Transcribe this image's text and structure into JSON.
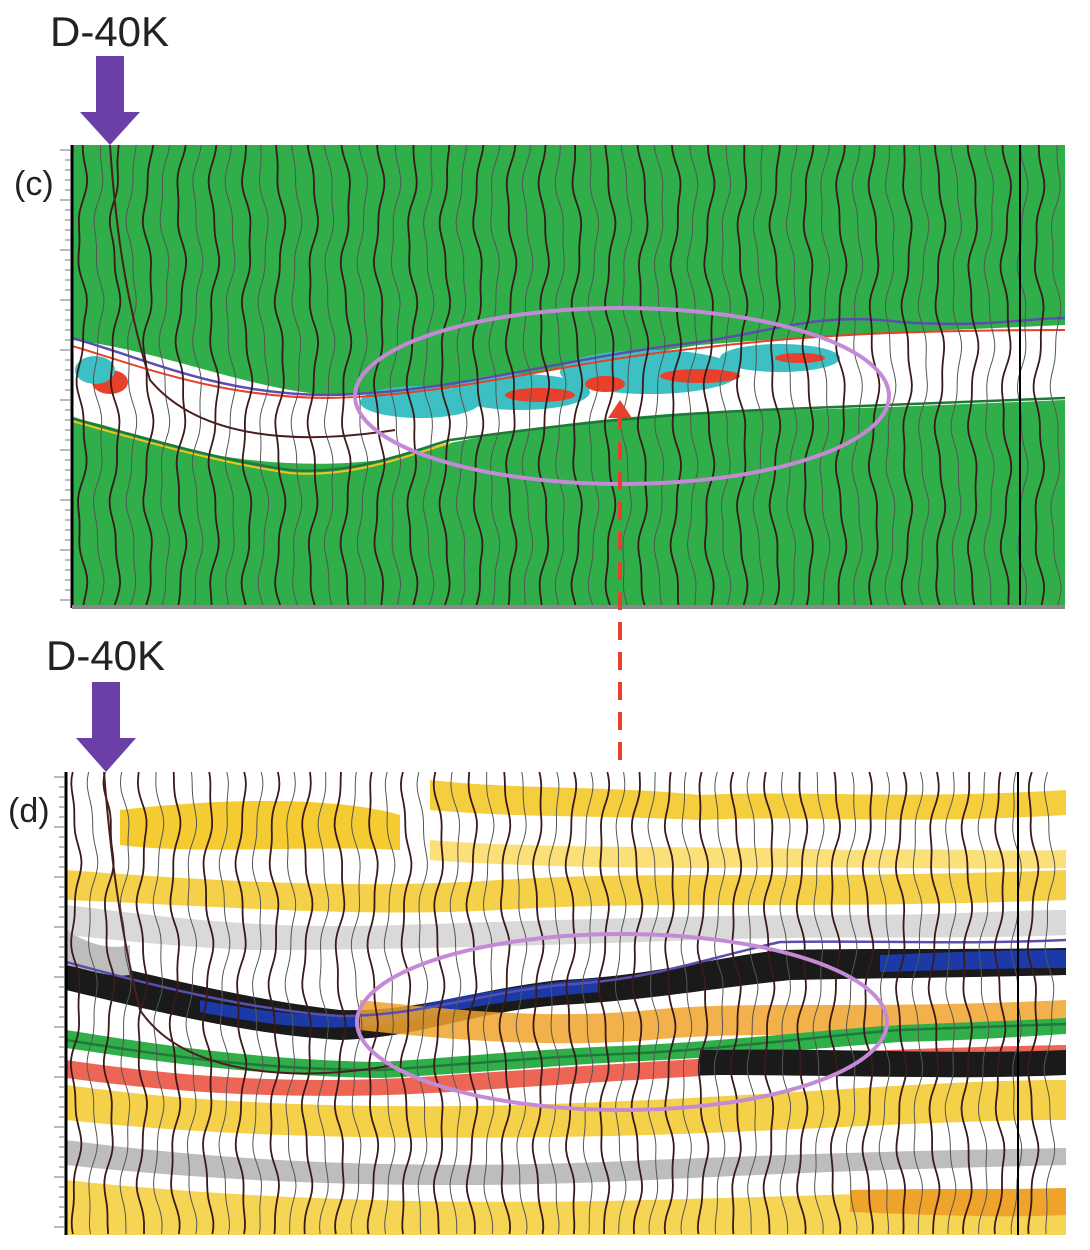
{
  "well_top": {
    "name": "D-40K"
  },
  "well_bottom": {
    "name": "D-40K"
  },
  "panel_c": {
    "label": "(c)"
  },
  "panel_d": {
    "label": "(d)"
  },
  "colors": {
    "arrow": "#6a3fa8",
    "ellipse": "#c58ad6",
    "dashed_link": "#e8402a",
    "panel_c_background": "#2fae4a",
    "horizon_top": "#5a4fb0",
    "horizon_bottom": "#1f7a3a",
    "well_log": "#4a1f1f",
    "amplitude_high": "#e8402a",
    "amplitude_mid": "#3cc0c4",
    "amplitude_gold": "#f3c51b",
    "amplitude_dark": "#111111",
    "amplitude_blue": "#1b3aa8"
  },
  "icons": {
    "well_marker": "down-arrow-icon"
  }
}
